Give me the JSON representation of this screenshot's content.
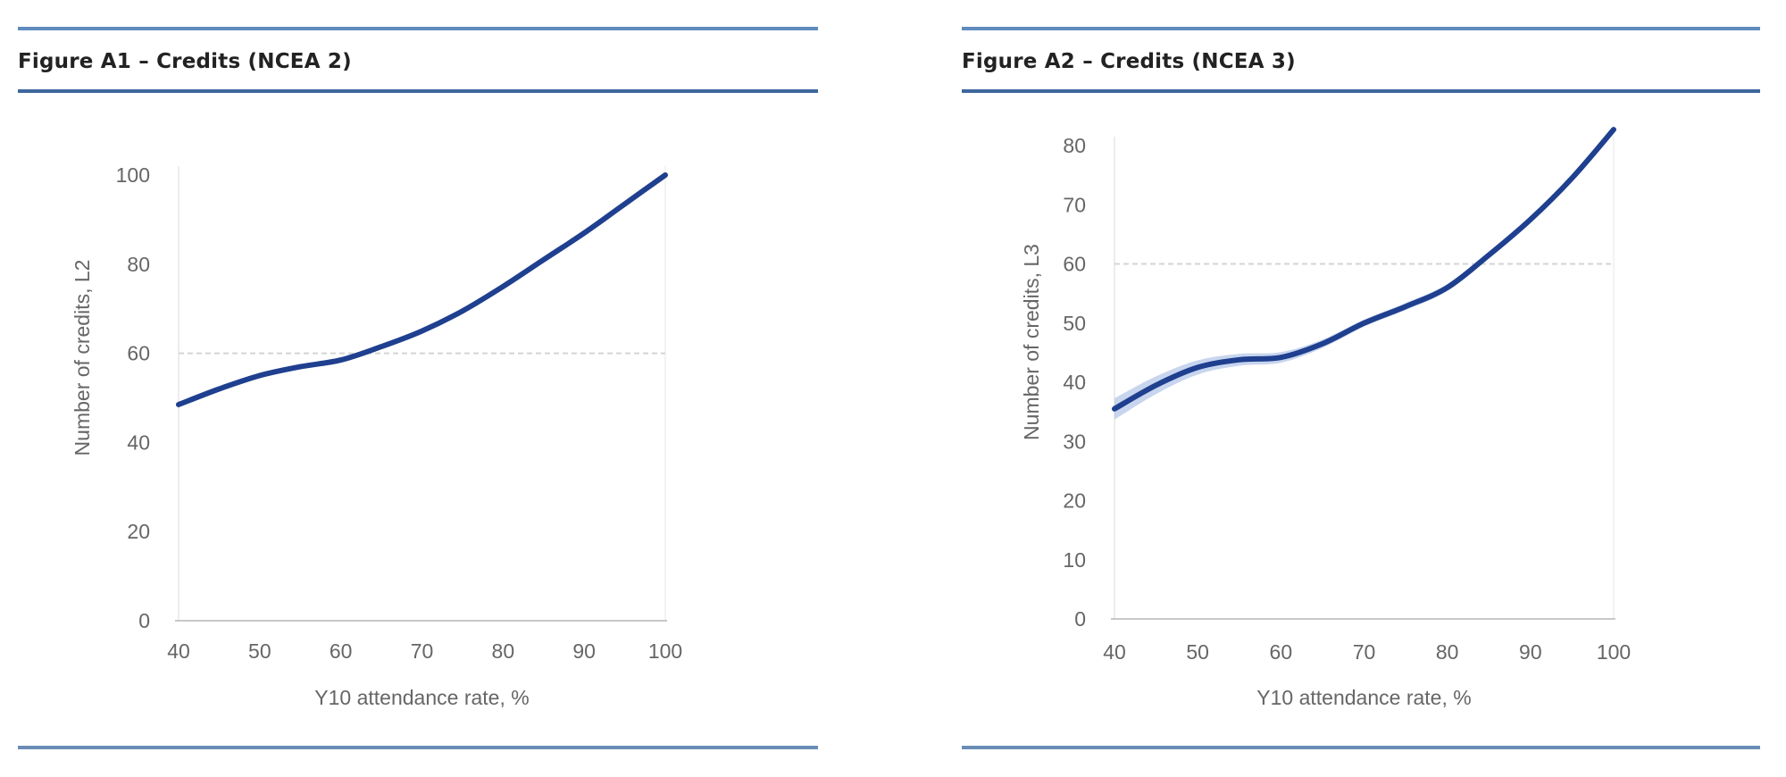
{
  "chart_data": [
    {
      "type": "line",
      "title": "Figure A1 – Credits (NCEA 2)",
      "xlabel": "Y10 attendance rate, %",
      "ylabel": "Number of credits, L2",
      "xlim": [
        40,
        100
      ],
      "ylim": [
        0,
        100
      ],
      "xticks": [
        "40",
        "50",
        "60",
        "70",
        "80",
        "90",
        "100"
      ],
      "yticks": [
        "0",
        "20",
        "40",
        "60",
        "80",
        "100"
      ],
      "reference_line": {
        "y": 60,
        "style": "dashed"
      },
      "confidence_band": false,
      "line_color": "#1f3f8f",
      "series": [
        {
          "name": "Number of credits, L2",
          "x": [
            40,
            45,
            50,
            55,
            60,
            65,
            70,
            75,
            80,
            85,
            90,
            95,
            100
          ],
          "y": [
            48.5,
            52,
            55,
            57,
            58.5,
            61.5,
            65,
            69.5,
            75,
            81,
            87,
            93.5,
            100
          ]
        }
      ]
    },
    {
      "type": "line",
      "title": "Figure A2 – Credits (NCEA 3)",
      "xlabel": "Y10 attendance rate, %",
      "ylabel": "Number of credits, L3",
      "xlim": [
        40,
        100
      ],
      "ylim": [
        0,
        80
      ],
      "xticks": [
        "40",
        "50",
        "60",
        "70",
        "80",
        "90",
        "100"
      ],
      "yticks": [
        "0",
        "10",
        "20",
        "30",
        "40",
        "50",
        "60",
        "70",
        "80"
      ],
      "reference_line": {
        "y": 60,
        "style": "dashed"
      },
      "confidence_band": true,
      "line_color": "#1f3f8f",
      "band_color": "#b9cbea",
      "series": [
        {
          "name": "Number of credits, L3",
          "x": [
            40,
            45,
            50,
            55,
            60,
            65,
            70,
            75,
            80,
            85,
            90,
            95,
            100
          ],
          "y": [
            35.5,
            39.5,
            42.5,
            43.8,
            44.2,
            46.5,
            50,
            52.8,
            56,
            61.5,
            67.5,
            74.5,
            82.7
          ],
          "band_halfwidth": [
            1.8,
            1.5,
            1.2,
            1.0,
            0.9,
            0.7,
            0.6,
            0.6,
            0.6,
            0.6,
            0.6,
            0.6,
            0.6
          ]
        }
      ]
    }
  ]
}
